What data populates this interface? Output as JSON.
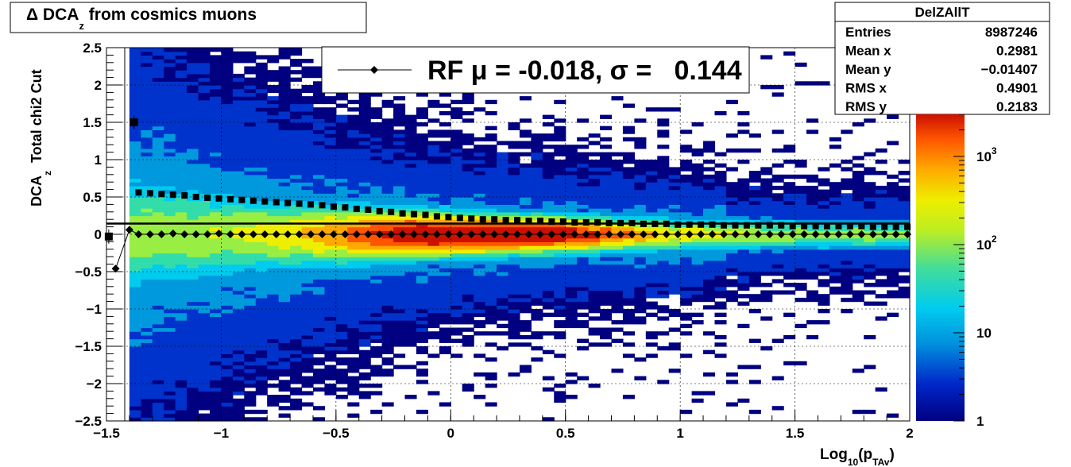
{
  "title": {
    "main": "Δ DCA",
    "sub": "z",
    "rest": " from cosmics muons"
  },
  "stats_box": {
    "name": "DelZAllT",
    "rows": [
      {
        "label": "Entries",
        "value": "8987246"
      },
      {
        "label": "Mean x",
        "value": "0.2981"
      },
      {
        "label": "Mean y",
        "value": "−0.01407"
      },
      {
        "label": "RMS x",
        "value": "0.4901"
      },
      {
        "label": "RMS y",
        "value": "0.2183"
      }
    ]
  },
  "legend": {
    "text": "RF μ = -0.018, σ =   0.144"
  },
  "axes": {
    "ylabel_main": "DCA",
    "ylabel_sub": "z",
    "ylabel_rest": "Total chi2 Cut",
    "xlabel": {
      "pre": "Log",
      "sub1": "10",
      "mid": "(p",
      "sub2": "TAv",
      "post": ")"
    },
    "x_ticks": [
      "−1.5",
      "−1",
      "−0.5",
      "0",
      "0.5",
      "1",
      "1.5",
      "2"
    ],
    "y_ticks": [
      "2.5",
      "2",
      "1.5",
      "1",
      "0.5",
      "0",
      "−0.5",
      "−1",
      "−1.5",
      "−2",
      "−2.5"
    ],
    "z_ticks": [
      {
        "base": "10",
        "exp": "3"
      },
      {
        "base": "10",
        "exp": "2"
      },
      {
        "base": "10",
        "exp": ""
      },
      {
        "base": "1",
        "exp": ""
      }
    ]
  },
  "colors": {
    "palette": [
      "#000080",
      "#0033cc",
      "#0099dd",
      "#00ccee",
      "#33ddaa",
      "#99ee44",
      "#eeee00",
      "#ffaa00",
      "#ff5500",
      "#cc1100"
    ]
  },
  "chart_data": {
    "type": "heatmap",
    "xlim": [
      -1.5,
      2
    ],
    "ylim": [
      -2.5,
      2.5
    ],
    "zlim": [
      1,
      3000
    ],
    "z_scale": "log",
    "grid": true,
    "profile_mean": {
      "x": [
        -1.46,
        -1.4,
        -1.36,
        -1.31,
        -1.26,
        -1.21,
        -1.16,
        -1.11,
        -1.06,
        -1.01,
        -0.96,
        -0.91,
        -0.86,
        -0.81,
        -0.76,
        -0.71,
        -0.66,
        -0.61,
        -0.56,
        -0.51,
        -0.46,
        -0.41,
        -0.36,
        -0.31,
        -0.26,
        -0.21,
        -0.16,
        -0.11,
        -0.06,
        -0.01,
        0.04,
        0.09,
        0.14,
        0.19,
        0.24,
        0.29,
        0.34,
        0.39,
        0.44,
        0.49,
        0.54,
        0.59,
        0.64,
        0.69,
        0.74,
        0.79,
        0.84,
        0.89,
        0.94,
        0.99,
        1.04,
        1.09,
        1.14,
        1.19,
        1.24,
        1.29,
        1.34,
        1.39,
        1.44,
        1.49,
        1.54,
        1.59,
        1.64,
        1.69,
        1.74,
        1.79,
        1.84,
        1.89,
        1.94,
        1.99
      ],
      "y": [
        -0.46,
        0.06,
        0.0,
        0.0,
        0.0,
        0.01,
        0.0,
        0.0,
        0.0,
        0.01,
        0.0,
        0.0,
        0.0,
        0.0,
        0.0,
        0.0,
        0.0,
        0.0,
        0.0,
        0.0,
        0.0,
        0.0,
        0.0,
        0.0,
        0.0,
        0.0,
        0.0,
        0.0,
        0.0,
        0.0,
        0.0,
        0.0,
        0.0,
        0.0,
        0.0,
        0.0,
        0.0,
        0.0,
        0.0,
        0.0,
        0.0,
        0.0,
        0.0,
        0.0,
        0.0,
        0.0,
        0.0,
        0.0,
        0.0,
        0.0,
        0.0,
        0.0,
        0.0,
        0.0,
        0.0,
        0.0,
        0.0,
        0.0,
        0.0,
        0.0,
        0.0,
        0.0,
        0.0,
        0.0,
        0.0,
        0.0,
        0.0,
        0.0,
        0.0,
        0.0
      ]
    },
    "profile_sigma": {
      "x": [
        -1.36,
        -1.31,
        -1.26,
        -1.21,
        -1.16,
        -1.11,
        -1.06,
        -1.01,
        -0.96,
        -0.91,
        -0.86,
        -0.81,
        -0.76,
        -0.71,
        -0.66,
        -0.61,
        -0.56,
        -0.51,
        -0.46,
        -0.41,
        -0.36,
        -0.31,
        -0.26,
        -0.21,
        -0.16,
        -0.11,
        -0.06,
        -0.01,
        0.04,
        0.09,
        0.14,
        0.19,
        0.24,
        0.29,
        0.34,
        0.39,
        0.44,
        0.49,
        0.54,
        0.59,
        0.64,
        0.69,
        0.74,
        0.79,
        0.84,
        0.89,
        0.94,
        0.99,
        1.04,
        1.09,
        1.14,
        1.19,
        1.24,
        1.29,
        1.34,
        1.39,
        1.44,
        1.49,
        1.54,
        1.59,
        1.64,
        1.69,
        1.74,
        1.79,
        1.84,
        1.89,
        1.94,
        1.99
      ],
      "y": [
        0.56,
        0.55,
        0.54,
        0.53,
        0.52,
        0.5,
        0.49,
        0.48,
        0.47,
        0.46,
        0.45,
        0.44,
        0.43,
        0.42,
        0.41,
        0.4,
        0.39,
        0.37,
        0.36,
        0.34,
        0.33,
        0.31,
        0.3,
        0.28,
        0.27,
        0.26,
        0.24,
        0.23,
        0.22,
        0.21,
        0.2,
        0.2,
        0.19,
        0.19,
        0.18,
        0.18,
        0.17,
        0.17,
        0.16,
        0.16,
        0.16,
        0.15,
        0.15,
        0.15,
        0.14,
        0.14,
        0.14,
        0.13,
        0.13,
        0.13,
        0.13,
        0.12,
        0.12,
        0.12,
        0.12,
        0.12,
        0.12,
        0.11,
        0.11,
        0.11,
        0.11,
        0.11,
        0.11,
        0.11,
        0.1,
        0.1,
        0.1,
        0.1
      ]
    },
    "outlier_points": [
      {
        "x": -1.49,
        "y": -0.03
      },
      {
        "x": -1.38,
        "y": 1.5
      }
    ],
    "fit_line_y": 0.144
  }
}
